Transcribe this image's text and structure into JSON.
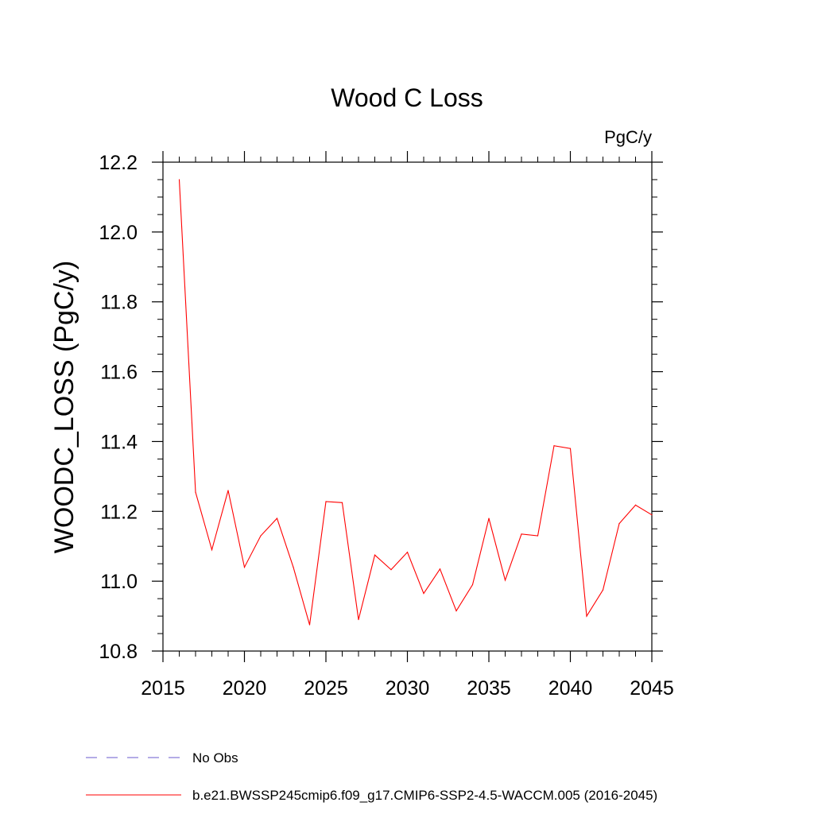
{
  "colors": {
    "series": "#ff0000",
    "obs": "#6a5acd",
    "axis": "#000000"
  },
  "chart_data": {
    "type": "line",
    "title": "Wood C Loss",
    "units": "PgC/y",
    "ylabel": "WOODC_LOSS  (PgC/y)",
    "xlabel": "",
    "xlim": [
      2015,
      2045
    ],
    "ylim": [
      10.8,
      12.2
    ],
    "xticks": [
      2015,
      2020,
      2025,
      2030,
      2035,
      2040,
      2045
    ],
    "xtick_labels": [
      "2015",
      "2020",
      "2025",
      "2030",
      "2035",
      "2040",
      "2045"
    ],
    "yticks": [
      10.8,
      11.0,
      11.2,
      11.4,
      11.6,
      11.8,
      12.0,
      12.2
    ],
    "ytick_labels": [
      "10.8",
      "11.0",
      "11.2",
      "11.4",
      "11.6",
      "11.8",
      "12.0",
      "12.2"
    ],
    "legend_position": "bottom",
    "legend": [
      {
        "label": "No Obs",
        "style": "dashed",
        "color": "#6a5acd"
      },
      {
        "label": "b.e21.BWSSP245cmip6.f09_g17.CMIP6-SSP2-4.5-WACCM.005 (2016-2045)",
        "style": "solid",
        "color": "#ff0000"
      }
    ],
    "series": [
      {
        "x": [
          2016,
          2017,
          2018,
          2019,
          2020,
          2021,
          2022,
          2023,
          2024,
          2025,
          2026,
          2027,
          2028,
          2029,
          2030,
          2031,
          2032,
          2033,
          2034,
          2035,
          2036,
          2037,
          2038,
          2039,
          2040,
          2041,
          2042,
          2043,
          2044,
          2045
        ],
        "values": [
          12.15,
          11.255,
          11.09,
          11.26,
          11.04,
          11.13,
          11.18,
          11.04,
          10.875,
          11.228,
          11.225,
          10.89,
          11.075,
          11.033,
          11.083,
          10.965,
          11.035,
          10.915,
          10.99,
          11.18,
          11.003,
          11.135,
          11.13,
          11.388,
          11.38,
          10.9,
          10.975,
          11.165,
          11.218,
          11.19
        ]
      }
    ]
  }
}
